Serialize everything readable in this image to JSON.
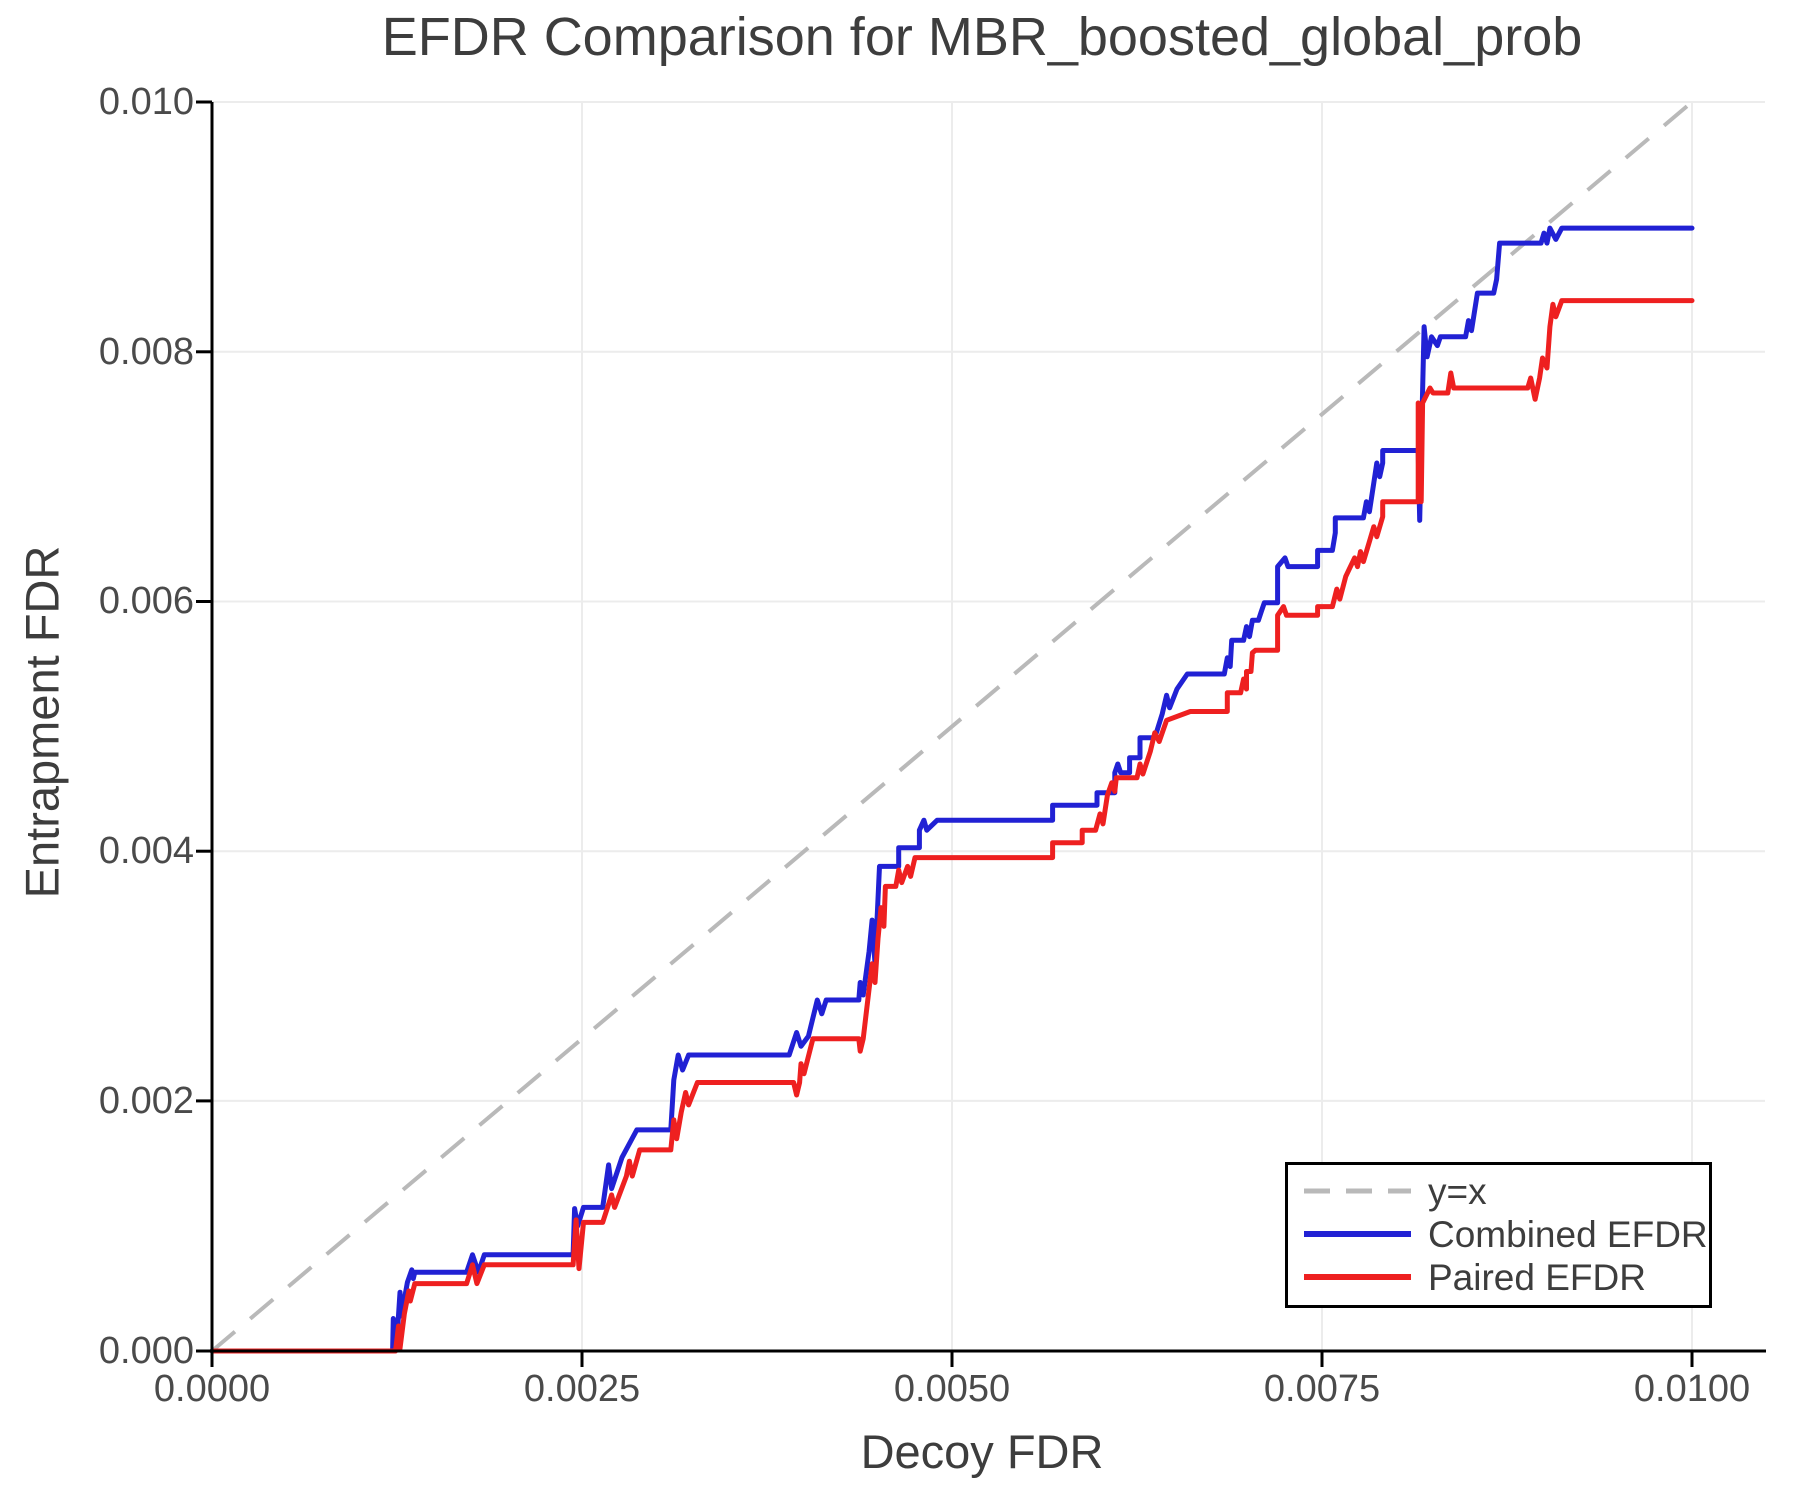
{
  "chart_data": {
    "type": "line",
    "title": "EFDR Comparison for MBR_boosted_global_prob",
    "xlabel": "Decoy FDR",
    "ylabel": "Entrapment FDR",
    "xlim": [
      0.0,
      0.01
    ],
    "ylim": [
      0.0,
      0.01
    ],
    "grid": true,
    "xtick_labels": [
      "0.0000",
      "0.0025",
      "0.0050",
      "0.0075",
      "0.0100"
    ],
    "ytick_labels": [
      "0.000",
      "0.002",
      "0.004",
      "0.006",
      "0.008",
      "0.010"
    ],
    "legend": {
      "position": "lower right",
      "entries": [
        {
          "label": "y=x",
          "color": "#b9b9b9",
          "dashed": true
        },
        {
          "label": "Combined EFDR",
          "color": "#2121d4",
          "dashed": false
        },
        {
          "label": "Paired EFDR",
          "color": "#ee2020",
          "dashed": false
        }
      ]
    },
    "identity_line": {
      "label": "y=x",
      "color": "#b9b9b9",
      "style": "dashed",
      "from": [
        0,
        0
      ],
      "to": [
        0.01,
        0.01
      ]
    },
    "series": [
      {
        "name": "Combined EFDR",
        "color": "#2121d4",
        "points": [
          [
            0.0,
            0.0
          ],
          [
            0.00122,
            0.0
          ],
          [
            0.001225,
            0.00026
          ],
          [
            0.00123,
            5e-05
          ],
          [
            0.00125,
            0.0001
          ],
          [
            0.00127,
            0.00047
          ],
          [
            0.00128,
            0.00028
          ],
          [
            0.00132,
            0.00055
          ],
          [
            0.00135,
            0.00065
          ],
          [
            0.00136,
            0.00058
          ],
          [
            0.00137,
            0.00063
          ],
          [
            0.00172,
            0.00063
          ],
          [
            0.00176,
            0.00077
          ],
          [
            0.0018,
            0.00063
          ],
          [
            0.00184,
            0.00077
          ],
          [
            0.00244,
            0.00077
          ],
          [
            0.00245,
            0.00114
          ],
          [
            0.00247,
            0.001
          ],
          [
            0.00251,
            0.00115
          ],
          [
            0.00264,
            0.00115
          ],
          [
            0.00268,
            0.00149
          ],
          [
            0.0027,
            0.0013
          ],
          [
            0.00277,
            0.00155
          ],
          [
            0.00287,
            0.00177
          ],
          [
            0.0031,
            0.00177
          ],
          [
            0.00312,
            0.00217
          ],
          [
            0.00315,
            0.00237
          ],
          [
            0.00318,
            0.00225
          ],
          [
            0.00322,
            0.00237
          ],
          [
            0.0039,
            0.00237
          ],
          [
            0.00395,
            0.00255
          ],
          [
            0.00398,
            0.00244
          ],
          [
            0.00403,
            0.00252
          ],
          [
            0.00409,
            0.00281
          ],
          [
            0.00412,
            0.0027
          ],
          [
            0.00415,
            0.00281
          ],
          [
            0.00437,
            0.00281
          ],
          [
            0.00438,
            0.00295
          ],
          [
            0.0044,
            0.00285
          ],
          [
            0.00444,
            0.0032
          ],
          [
            0.00446,
            0.00345
          ],
          [
            0.00448,
            0.0031
          ],
          [
            0.00451,
            0.00388
          ],
          [
            0.00464,
            0.00388
          ],
          [
            0.00464,
            0.00403
          ],
          [
            0.00478,
            0.00403
          ],
          [
            0.00478,
            0.00417
          ],
          [
            0.00481,
            0.00425
          ],
          [
            0.00483,
            0.00417
          ],
          [
            0.0049,
            0.00425
          ],
          [
            0.00568,
            0.00425
          ],
          [
            0.00568,
            0.00437
          ],
          [
            0.00598,
            0.00437
          ],
          [
            0.00598,
            0.00447
          ],
          [
            0.0061,
            0.00447
          ],
          [
            0.0061,
            0.00463
          ],
          [
            0.00612,
            0.0047
          ],
          [
            0.00614,
            0.00463
          ],
          [
            0.0062,
            0.00463
          ],
          [
            0.0062,
            0.00475
          ],
          [
            0.00627,
            0.00475
          ],
          [
            0.00627,
            0.00491
          ],
          [
            0.00637,
            0.00491
          ],
          [
            0.00642,
            0.0051
          ],
          [
            0.00645,
            0.00525
          ],
          [
            0.00647,
            0.00515
          ],
          [
            0.00652,
            0.0053
          ],
          [
            0.00659,
            0.00542
          ],
          [
            0.00684,
            0.00542
          ],
          [
            0.00686,
            0.00555
          ],
          [
            0.00688,
            0.00548
          ],
          [
            0.00689,
            0.00569
          ],
          [
            0.00697,
            0.00569
          ],
          [
            0.00699,
            0.0058
          ],
          [
            0.00701,
            0.00572
          ],
          [
            0.00703,
            0.00585
          ],
          [
            0.00707,
            0.00585
          ],
          [
            0.00709,
            0.00592
          ],
          [
            0.00711,
            0.00599
          ],
          [
            0.0072,
            0.00599
          ],
          [
            0.0072,
            0.00628
          ],
          [
            0.00725,
            0.00635
          ],
          [
            0.00727,
            0.00628
          ],
          [
            0.00747,
            0.00628
          ],
          [
            0.00747,
            0.00641
          ],
          [
            0.00757,
            0.00641
          ],
          [
            0.00759,
            0.00655
          ],
          [
            0.00759,
            0.00667
          ],
          [
            0.00778,
            0.00667
          ],
          [
            0.0078,
            0.0068
          ],
          [
            0.00782,
            0.00672
          ],
          [
            0.00785,
            0.00695
          ],
          [
            0.00787,
            0.00711
          ],
          [
            0.00789,
            0.007
          ],
          [
            0.00791,
            0.00711
          ],
          [
            0.00791,
            0.00721
          ],
          [
            0.00815,
            0.00721
          ],
          [
            0.00816,
            0.00665
          ],
          [
            0.00817,
            0.00721
          ],
          [
            0.00819,
            0.0082
          ],
          [
            0.00821,
            0.00796
          ],
          [
            0.00824,
            0.00812
          ],
          [
            0.00828,
            0.00805
          ],
          [
            0.0083,
            0.00812
          ],
          [
            0.00847,
            0.00812
          ],
          [
            0.00849,
            0.00825
          ],
          [
            0.00851,
            0.00817
          ],
          [
            0.00855,
            0.00847
          ],
          [
            0.00866,
            0.00847
          ],
          [
            0.00868,
            0.00858
          ],
          [
            0.0087,
            0.00887
          ],
          [
            0.00898,
            0.00887
          ],
          [
            0.009,
            0.00895
          ],
          [
            0.00902,
            0.00887
          ],
          [
            0.00904,
            0.00899
          ],
          [
            0.00908,
            0.0089
          ],
          [
            0.00912,
            0.00899
          ],
          [
            0.01,
            0.00899
          ]
        ]
      },
      {
        "name": "Paired EFDR",
        "color": "#ee2020",
        "points": [
          [
            0.0,
            0.0
          ],
          [
            0.00124,
            0.0
          ],
          [
            0.00126,
            0.0002
          ],
          [
            0.00127,
            2e-05
          ],
          [
            0.0013,
            0.0003
          ],
          [
            0.00133,
            0.00048
          ],
          [
            0.00134,
            0.0004
          ],
          [
            0.00137,
            0.00054
          ],
          [
            0.00172,
            0.00054
          ],
          [
            0.00176,
            0.00069
          ],
          [
            0.00179,
            0.00054
          ],
          [
            0.00184,
            0.00069
          ],
          [
            0.00244,
            0.00069
          ],
          [
            0.00246,
            0.00105
          ],
          [
            0.00248,
            0.00066
          ],
          [
            0.00251,
            0.00103
          ],
          [
            0.00264,
            0.00103
          ],
          [
            0.0027,
            0.00125
          ],
          [
            0.00272,
            0.00115
          ],
          [
            0.0028,
            0.0014
          ],
          [
            0.00282,
            0.00152
          ],
          [
            0.00284,
            0.0014
          ],
          [
            0.00289,
            0.00161
          ],
          [
            0.0031,
            0.00161
          ],
          [
            0.00312,
            0.00185
          ],
          [
            0.00314,
            0.0017
          ],
          [
            0.00317,
            0.00191
          ],
          [
            0.0032,
            0.00207
          ],
          [
            0.00322,
            0.00197
          ],
          [
            0.00328,
            0.00215
          ],
          [
            0.00393,
            0.00215
          ],
          [
            0.00395,
            0.00205
          ],
          [
            0.00397,
            0.00215
          ],
          [
            0.00398,
            0.0023
          ],
          [
            0.004,
            0.00222
          ],
          [
            0.00406,
            0.0025
          ],
          [
            0.00437,
            0.0025
          ],
          [
            0.00438,
            0.0024
          ],
          [
            0.0044,
            0.0025
          ],
          [
            0.00444,
            0.0029
          ],
          [
            0.00446,
            0.0031
          ],
          [
            0.00448,
            0.00295
          ],
          [
            0.0045,
            0.0033
          ],
          [
            0.00452,
            0.00355
          ],
          [
            0.00454,
            0.0034
          ],
          [
            0.00455,
            0.00372
          ],
          [
            0.00462,
            0.00372
          ],
          [
            0.00464,
            0.00385
          ],
          [
            0.00466,
            0.00375
          ],
          [
            0.0047,
            0.00388
          ],
          [
            0.00472,
            0.0038
          ],
          [
            0.00475,
            0.00395
          ],
          [
            0.00484,
            0.00395
          ],
          [
            0.00568,
            0.00395
          ],
          [
            0.00568,
            0.00407
          ],
          [
            0.00588,
            0.00407
          ],
          [
            0.00588,
            0.00417
          ],
          [
            0.00597,
            0.00417
          ],
          [
            0.006,
            0.0043
          ],
          [
            0.00602,
            0.00422
          ],
          [
            0.00605,
            0.00445
          ],
          [
            0.00608,
            0.00455
          ],
          [
            0.0061,
            0.00448
          ],
          [
            0.00611,
            0.00459
          ],
          [
            0.00625,
            0.00459
          ],
          [
            0.00627,
            0.0047
          ],
          [
            0.00629,
            0.00462
          ],
          [
            0.00634,
            0.0048
          ],
          [
            0.00637,
            0.00495
          ],
          [
            0.0064,
            0.00488
          ],
          [
            0.00645,
            0.00505
          ],
          [
            0.00661,
            0.00512
          ],
          [
            0.00686,
            0.00512
          ],
          [
            0.00686,
            0.00527
          ],
          [
            0.00695,
            0.00527
          ],
          [
            0.00697,
            0.00538
          ],
          [
            0.00699,
            0.0053
          ],
          [
            0.00699,
            0.00544
          ],
          [
            0.00702,
            0.00544
          ],
          [
            0.00703,
            0.00559
          ],
          [
            0.00705,
            0.00561
          ],
          [
            0.0072,
            0.00561
          ],
          [
            0.0072,
            0.00589
          ],
          [
            0.00724,
            0.00596
          ],
          [
            0.00726,
            0.00589
          ],
          [
            0.00747,
            0.00589
          ],
          [
            0.00747,
            0.00596
          ],
          [
            0.00757,
            0.00596
          ],
          [
            0.0076,
            0.0061
          ],
          [
            0.00762,
            0.00602
          ],
          [
            0.00766,
            0.0062
          ],
          [
            0.00768,
            0.00625
          ],
          [
            0.00772,
            0.00635
          ],
          [
            0.00774,
            0.00628
          ],
          [
            0.00776,
            0.0064
          ],
          [
            0.00778,
            0.00632
          ],
          [
            0.00782,
            0.00648
          ],
          [
            0.00785,
            0.0066
          ],
          [
            0.00787,
            0.00652
          ],
          [
            0.00791,
            0.00668
          ],
          [
            0.00791,
            0.0068
          ],
          [
            0.00815,
            0.0068
          ],
          [
            0.00815,
            0.00759
          ],
          [
            0.00817,
            0.0068
          ],
          [
            0.00818,
            0.00759
          ],
          [
            0.00823,
            0.00771
          ],
          [
            0.00825,
            0.00767
          ],
          [
            0.00835,
            0.00767
          ],
          [
            0.00837,
            0.00783
          ],
          [
            0.00839,
            0.00771
          ],
          [
            0.00889,
            0.00771
          ],
          [
            0.00891,
            0.00779
          ],
          [
            0.00894,
            0.00762
          ],
          [
            0.00897,
            0.00779
          ],
          [
            0.00899,
            0.00795
          ],
          [
            0.00902,
            0.00787
          ],
          [
            0.00904,
            0.0082
          ],
          [
            0.00906,
            0.00838
          ],
          [
            0.00908,
            0.00828
          ],
          [
            0.00912,
            0.00841
          ],
          [
            0.01,
            0.00841
          ]
        ]
      }
    ]
  }
}
